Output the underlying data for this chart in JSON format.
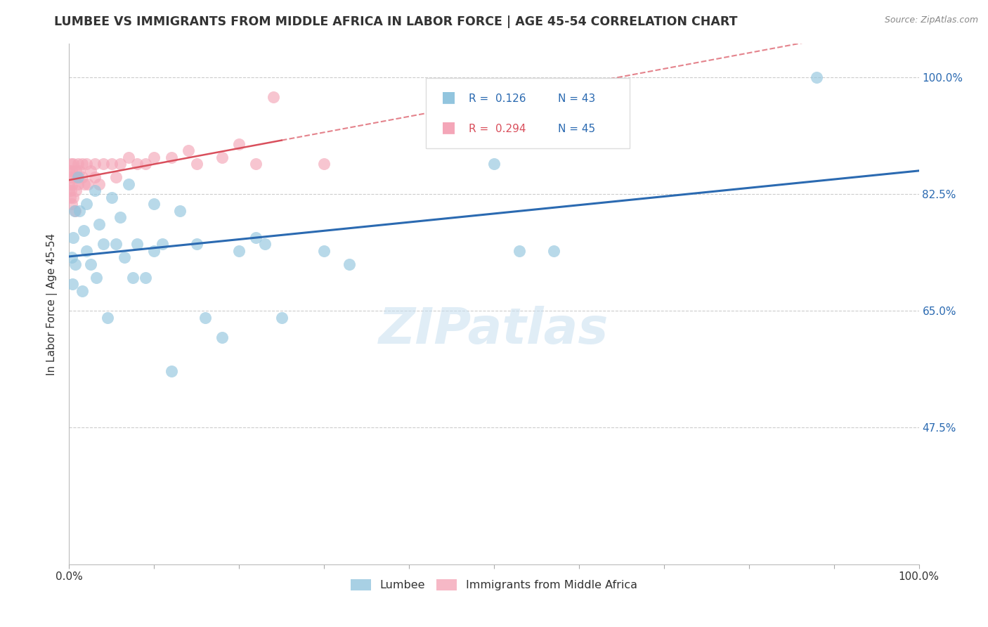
{
  "title": "LUMBEE VS IMMIGRANTS FROM MIDDLE AFRICA IN LABOR FORCE | AGE 45-54 CORRELATION CHART",
  "source": "Source: ZipAtlas.com",
  "ylabel": "In Labor Force | Age 45-54",
  "y_tick_labels": [
    "100.0%",
    "82.5%",
    "65.0%",
    "47.5%"
  ],
  "y_tick_values": [
    1.0,
    0.825,
    0.65,
    0.475
  ],
  "xlim": [
    0.0,
    1.0
  ],
  "ylim": [
    0.27,
    1.05
  ],
  "watermark": "ZIPatlas",
  "legend_r_blue": "R =  0.126",
  "legend_n_blue": "N = 43",
  "legend_r_pink": "R =  0.294",
  "legend_n_pink": "N = 45",
  "blue_color": "#92c5de",
  "pink_color": "#f4a6b8",
  "blue_line_color": "#2b6ab1",
  "pink_line_color": "#d94f5c",
  "lumbee_x": [
    0.003,
    0.004,
    0.005,
    0.006,
    0.007,
    0.01,
    0.012,
    0.015,
    0.017,
    0.02,
    0.02,
    0.025,
    0.03,
    0.032,
    0.035,
    0.04,
    0.045,
    0.05,
    0.055,
    0.06,
    0.065,
    0.07,
    0.075,
    0.08,
    0.09,
    0.1,
    0.1,
    0.11,
    0.12,
    0.13,
    0.15,
    0.16,
    0.18,
    0.2,
    0.22,
    0.23,
    0.25,
    0.3,
    0.33,
    0.5,
    0.53,
    0.57,
    0.88
  ],
  "lumbee_y": [
    0.73,
    0.69,
    0.76,
    0.8,
    0.72,
    0.85,
    0.8,
    0.68,
    0.77,
    0.81,
    0.74,
    0.72,
    0.83,
    0.7,
    0.78,
    0.75,
    0.64,
    0.82,
    0.75,
    0.79,
    0.73,
    0.84,
    0.7,
    0.75,
    0.7,
    0.81,
    0.74,
    0.75,
    0.56,
    0.8,
    0.75,
    0.64,
    0.61,
    0.74,
    0.76,
    0.75,
    0.64,
    0.74,
    0.72,
    0.87,
    0.74,
    0.74,
    1.0
  ],
  "africa_x": [
    0.0,
    0.0,
    0.0,
    0.001,
    0.001,
    0.002,
    0.002,
    0.003,
    0.003,
    0.004,
    0.005,
    0.005,
    0.006,
    0.007,
    0.008,
    0.008,
    0.009,
    0.01,
    0.01,
    0.012,
    0.015,
    0.015,
    0.018,
    0.02,
    0.022,
    0.025,
    0.03,
    0.03,
    0.035,
    0.04,
    0.05,
    0.055,
    0.06,
    0.07,
    0.08,
    0.09,
    0.1,
    0.12,
    0.14,
    0.15,
    0.18,
    0.2,
    0.22,
    0.24,
    0.3
  ],
  "africa_y": [
    0.84,
    0.86,
    0.83,
    0.85,
    0.82,
    0.87,
    0.83,
    0.86,
    0.81,
    0.84,
    0.87,
    0.82,
    0.85,
    0.8,
    0.86,
    0.83,
    0.85,
    0.87,
    0.84,
    0.86,
    0.87,
    0.85,
    0.84,
    0.87,
    0.84,
    0.86,
    0.87,
    0.85,
    0.84,
    0.87,
    0.87,
    0.85,
    0.87,
    0.88,
    0.87,
    0.87,
    0.88,
    0.88,
    0.89,
    0.87,
    0.88,
    0.9,
    0.87,
    0.97,
    0.87
  ],
  "x_ticks": [
    0.0,
    0.1,
    0.2,
    0.3,
    0.4,
    0.5,
    0.6,
    0.7,
    0.8,
    0.9,
    1.0
  ]
}
